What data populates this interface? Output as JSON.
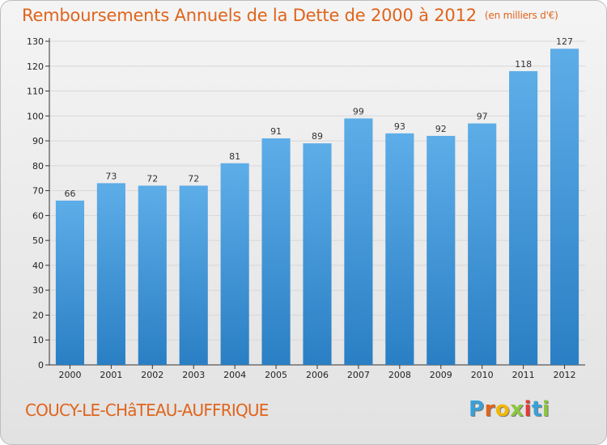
{
  "header": {
    "title": "Remboursements Annuels de la Dette de 2000 à 2012",
    "unit": "(en milliers d'€)"
  },
  "footer": {
    "commune": "COUCY-LE-CHâTEAU-AUFFRIQUE",
    "logo": [
      "P",
      "r",
      "o",
      "x",
      "i",
      "t",
      "i"
    ],
    "logo_colors": [
      "#3aa0d8",
      "#e0641c",
      "#f2b705",
      "#8cc63f",
      "#e53935",
      "#3aa0d8",
      "#8cc63f"
    ]
  },
  "colors": {
    "bar_light": "#5dade8",
    "bar_dark": "#2a7fc4",
    "title": "#e0641c",
    "grid": "#d8d8d8"
  },
  "chart_data": {
    "type": "bar",
    "title": "Remboursements Annuels de la Dette de 2000 à 2012",
    "categories": [
      "2000",
      "2001",
      "2002",
      "2003",
      "2004",
      "2005",
      "2006",
      "2007",
      "2008",
      "2009",
      "2010",
      "2011",
      "2012"
    ],
    "values": [
      66,
      73,
      72,
      72,
      81,
      91,
      89,
      99,
      93,
      92,
      97,
      118,
      127
    ],
    "ylim": [
      0,
      130
    ],
    "yticks": [
      0,
      10,
      20,
      30,
      40,
      50,
      60,
      70,
      80,
      90,
      100,
      110,
      120,
      130
    ],
    "grid": "horizontal",
    "legend": "none"
  }
}
